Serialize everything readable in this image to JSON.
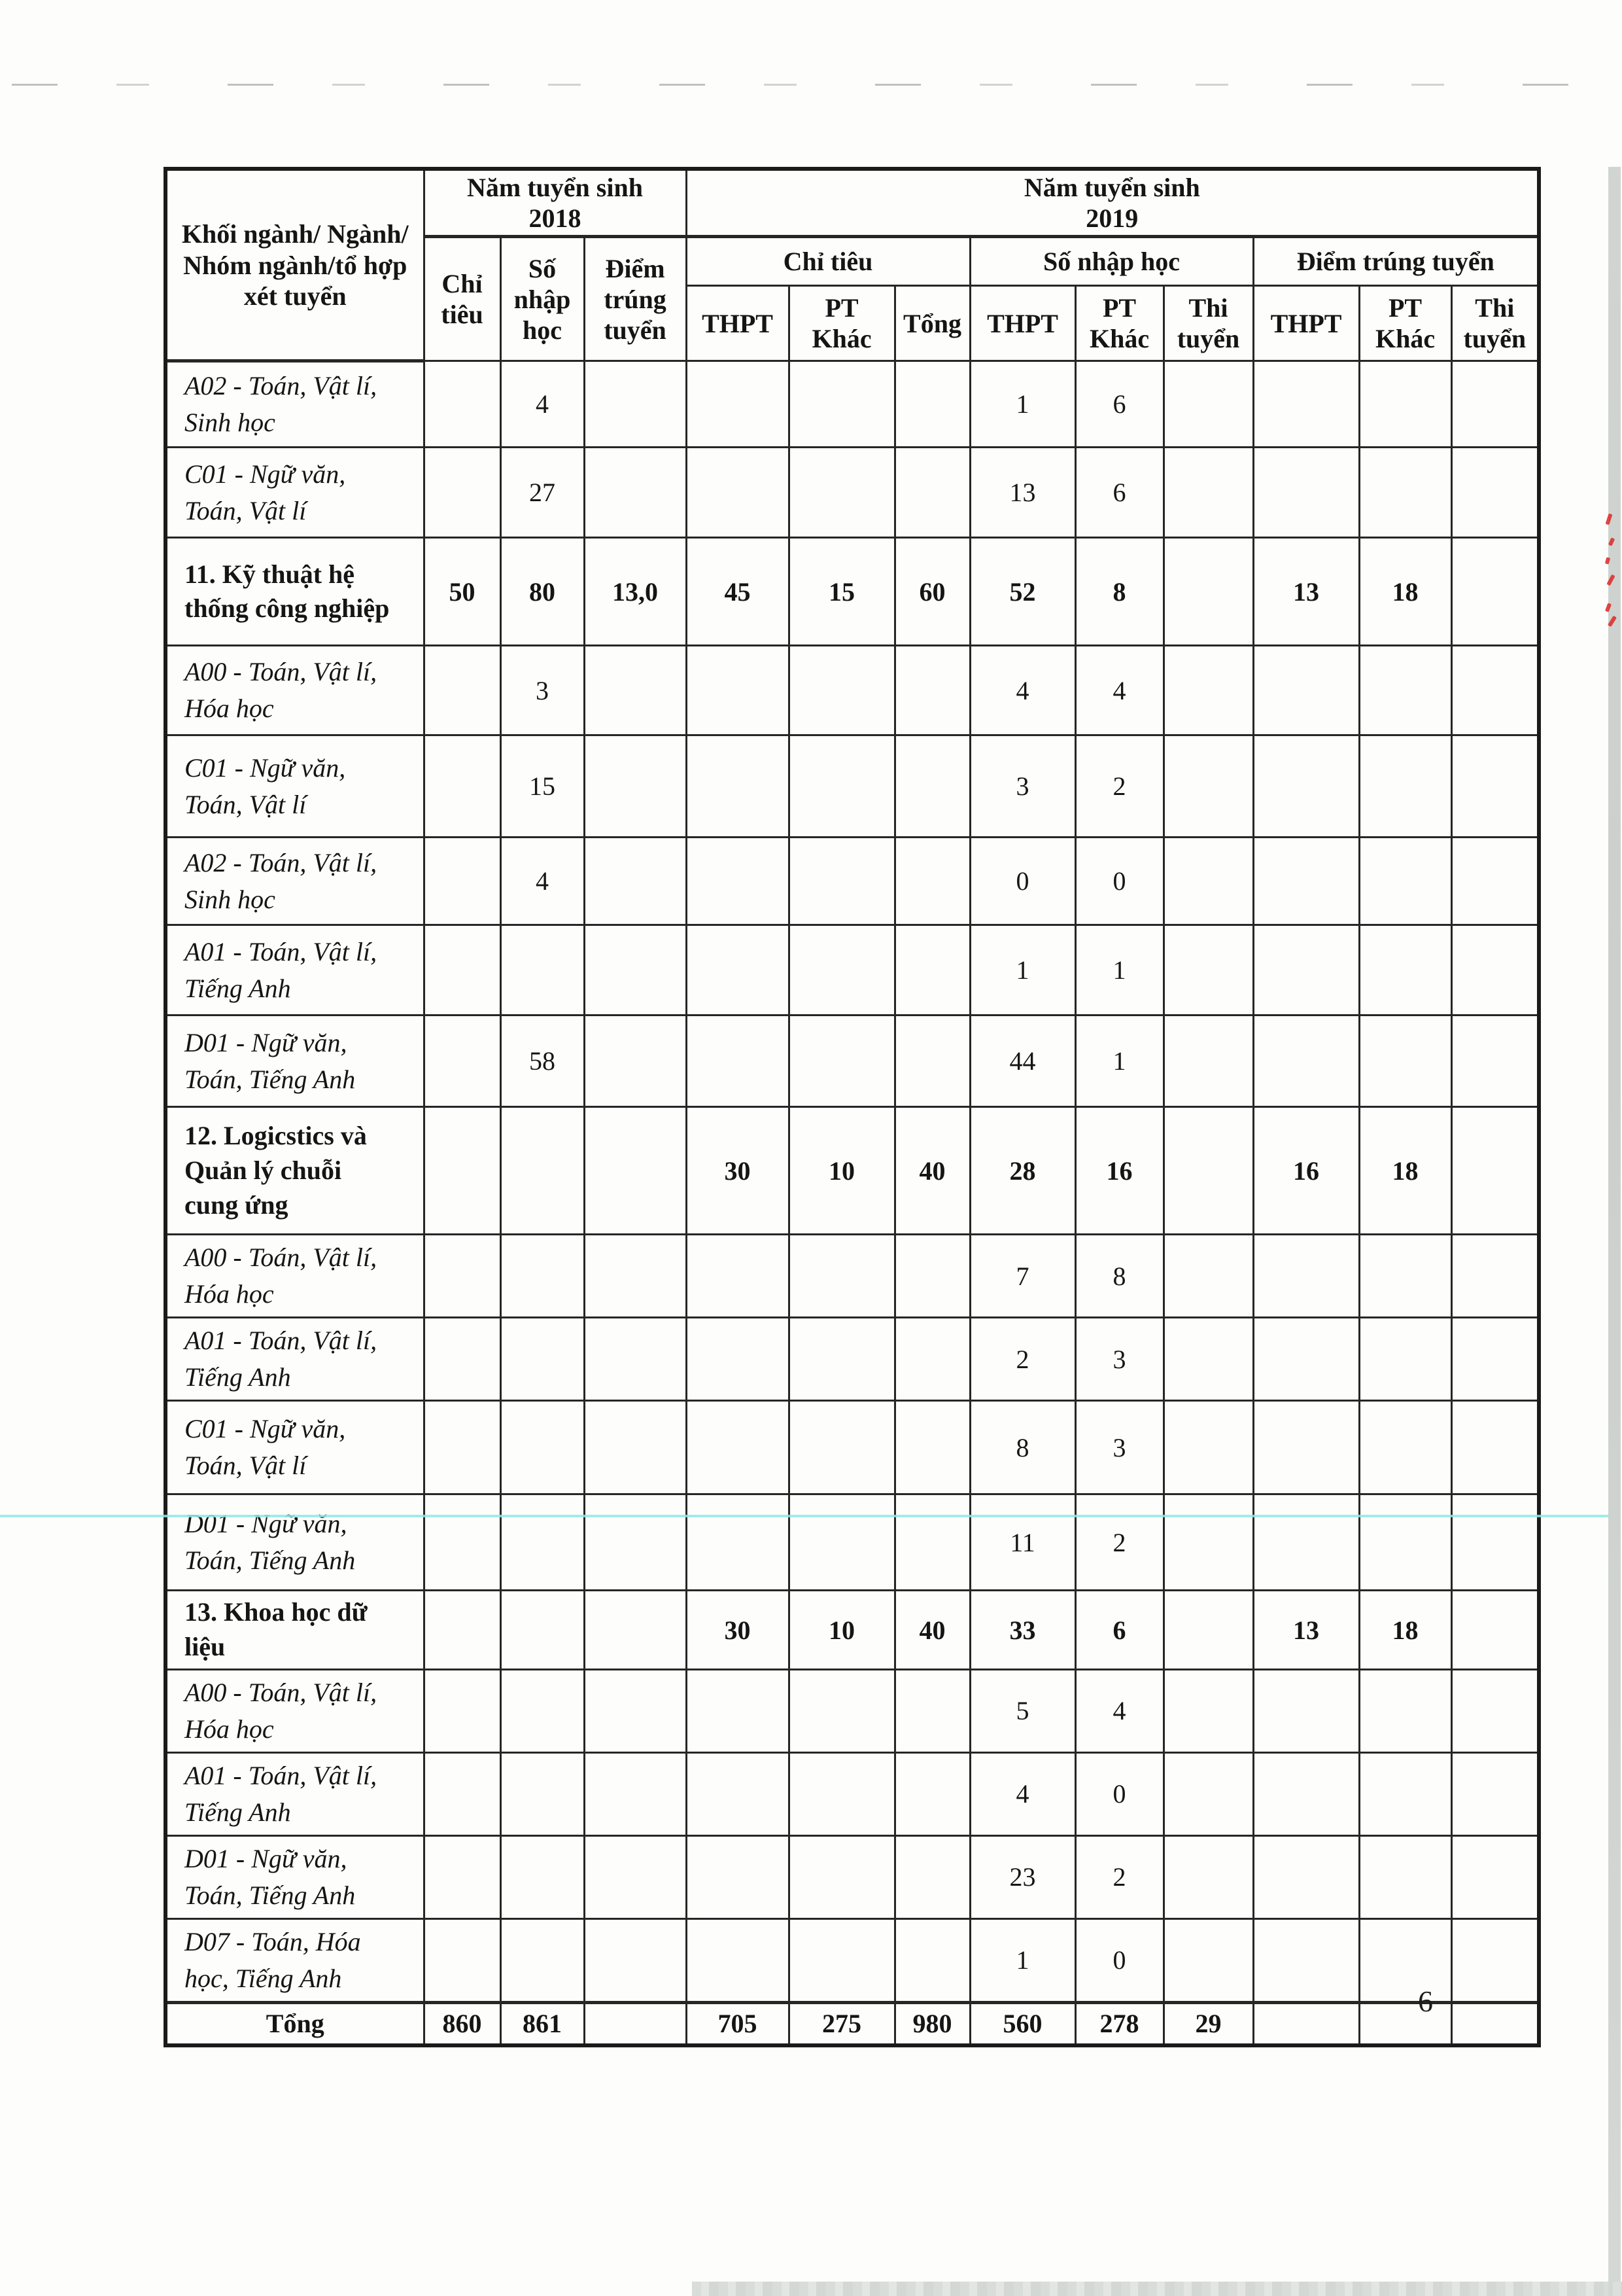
{
  "page": {
    "number": "6"
  },
  "table": {
    "header": {
      "col_group": "Khối ngành/ Ngành/ Nhóm ngành/tổ hợp xét tuyển",
      "y2018_line1": "Năm tuyển sinh",
      "y2018_line2": "2018",
      "y2019_line1": "Năm tuyển sinh",
      "y2019_line2": "2019",
      "g2018": [
        "Chỉ tiêu",
        "Số nhập học",
        "Điểm trúng tuyển"
      ],
      "g2019": [
        "Chỉ tiêu",
        "Số nhập học",
        "Điểm trúng tuyển"
      ],
      "sub": [
        "THPT",
        "PT Khác",
        "Tổng",
        "THPT",
        "PT Khác",
        "Thi tuyển",
        "THPT",
        "PT Khác",
        "Thi tuyển"
      ]
    },
    "rows": [
      {
        "t": "combo",
        "label": "A02 - Toán, Vật lí, Sinh học",
        "c": [
          "",
          "4",
          "",
          "",
          "",
          "",
          "1",
          "6",
          "",
          "",
          "",
          ""
        ]
      },
      {
        "t": "combo",
        "label": "C01 - Ngữ văn, Toán, Vật lí",
        "c": [
          "",
          "27",
          "",
          "",
          "",
          "",
          "13",
          "6",
          "",
          "",
          "",
          ""
        ]
      },
      {
        "t": "group",
        "label": "11. Kỹ thuật hệ thống công nghiệp",
        "c": [
          "50",
          "80",
          "13,0",
          "45",
          "15",
          "60",
          "52",
          "8",
          "",
          "13",
          "18",
          ""
        ]
      },
      {
        "t": "combo",
        "label": "A00 - Toán, Vật lí, Hóa học",
        "c": [
          "",
          "3",
          "",
          "",
          "",
          "",
          "4",
          "4",
          "",
          "",
          "",
          ""
        ]
      },
      {
        "t": "combo",
        "label": "C01 - Ngữ văn, Toán, Vật lí",
        "c": [
          "",
          "15",
          "",
          "",
          "",
          "",
          "3",
          "2",
          "",
          "",
          "",
          ""
        ]
      },
      {
        "t": "combo",
        "label": "A02 - Toán, Vật lí, Sinh học",
        "c": [
          "",
          "4",
          "",
          "",
          "",
          "",
          "0",
          "0",
          "",
          "",
          "",
          ""
        ]
      },
      {
        "t": "combo",
        "label": "A01 - Toán, Vật lí, Tiếng Anh",
        "c": [
          "",
          "",
          "",
          "",
          "",
          "",
          "1",
          "1",
          "",
          "",
          "",
          ""
        ]
      },
      {
        "t": "combo",
        "label": "D01 - Ngữ văn, Toán, Tiếng Anh",
        "c": [
          "",
          "58",
          "",
          "",
          "",
          "",
          "44",
          "1",
          "",
          "",
          "",
          ""
        ]
      },
      {
        "t": "group",
        "label": "12. Logicstics và Quản lý chuỗi cung ứng",
        "c": [
          "",
          "",
          "",
          "30",
          "10",
          "40",
          "28",
          "16",
          "",
          "16",
          "18",
          ""
        ]
      },
      {
        "t": "combo",
        "label": "A00 - Toán, Vật lí, Hóa học",
        "c": [
          "",
          "",
          "",
          "",
          "",
          "",
          "7",
          "8",
          "",
          "",
          "",
          ""
        ]
      },
      {
        "t": "combo",
        "label": "A01 - Toán, Vật lí, Tiếng Anh",
        "c": [
          "",
          "",
          "",
          "",
          "",
          "",
          "2",
          "3",
          "",
          "",
          "",
          ""
        ]
      },
      {
        "t": "combo",
        "label": "C01 - Ngữ văn, Toán, Vật lí",
        "c": [
          "",
          "",
          "",
          "",
          "",
          "",
          "8",
          "3",
          "",
          "",
          "",
          ""
        ]
      },
      {
        "t": "combo",
        "label": "D01 - Ngữ văn, Toán, Tiếng Anh",
        "c": [
          "",
          "",
          "",
          "",
          "",
          "",
          "11",
          "2",
          "",
          "",
          "",
          ""
        ]
      },
      {
        "t": "group",
        "label": "13. Khoa học dữ liệu",
        "c": [
          "",
          "",
          "",
          "30",
          "10",
          "40",
          "33",
          "6",
          "",
          "13",
          "18",
          ""
        ]
      },
      {
        "t": "combo",
        "label": "A00 - Toán, Vật lí, Hóa học",
        "c": [
          "",
          "",
          "",
          "",
          "",
          "",
          "5",
          "4",
          "",
          "",
          "",
          ""
        ]
      },
      {
        "t": "combo",
        "label": "A01 - Toán, Vật lí, Tiếng Anh",
        "c": [
          "",
          "",
          "",
          "",
          "",
          "",
          "4",
          "0",
          "",
          "",
          "",
          ""
        ]
      },
      {
        "t": "combo",
        "label": "D01 - Ngữ văn, Toán, Tiếng Anh",
        "c": [
          "",
          "",
          "",
          "",
          "",
          "",
          "23",
          "2",
          "",
          "",
          "",
          ""
        ]
      },
      {
        "t": "combo",
        "label": "D07 - Toán, Hóa học, Tiếng Anh",
        "c": [
          "",
          "",
          "",
          "",
          "",
          "",
          "1",
          "0",
          "",
          "",
          "",
          ""
        ]
      },
      {
        "t": "total",
        "label": "Tổng",
        "c": [
          "860",
          "861",
          "",
          "705",
          "275",
          "980",
          "560",
          "278",
          "29",
          "",
          "",
          ""
        ]
      }
    ]
  }
}
